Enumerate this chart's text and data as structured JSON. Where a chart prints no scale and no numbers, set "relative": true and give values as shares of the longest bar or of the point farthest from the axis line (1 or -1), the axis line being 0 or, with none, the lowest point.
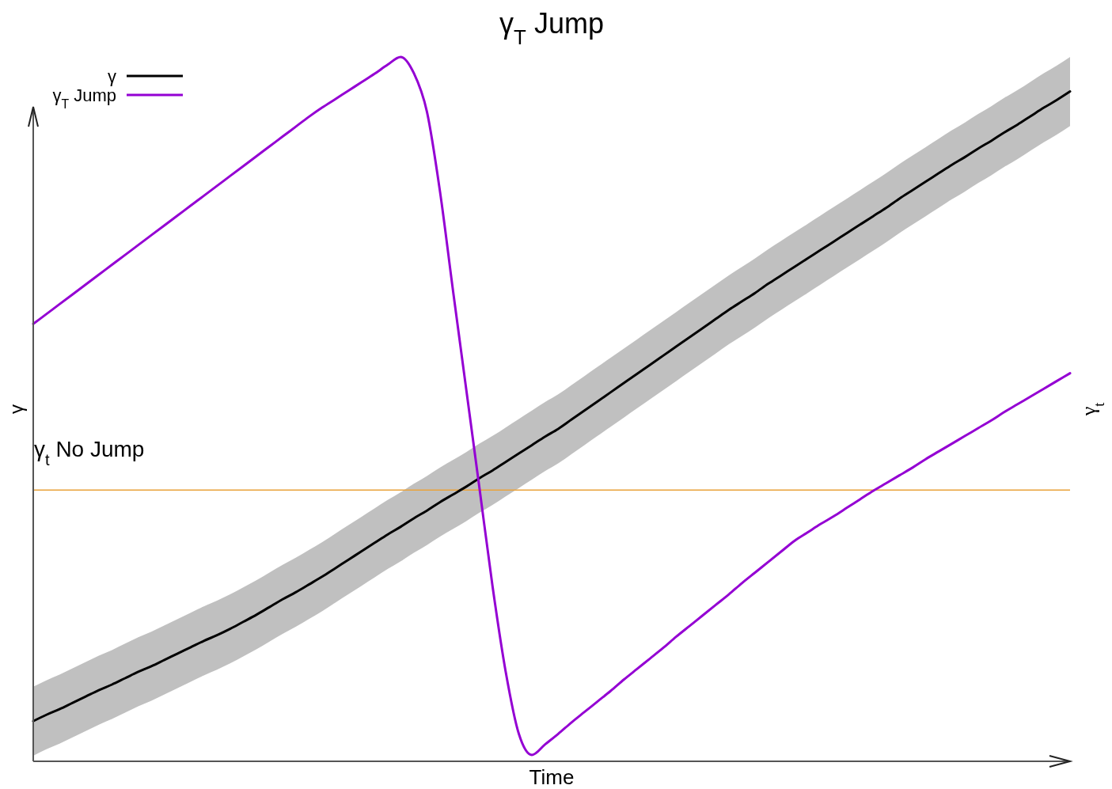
{
  "chart_data": {
    "type": "line",
    "title": "γ$_{T}$ Jump",
    "xlabel": "Time",
    "ylabel": "γ",
    "y2label": "γ$_{t}$",
    "relative": true,
    "legend": "top left",
    "categories": [
      null,
      null,
      null,
      null,
      null,
      null,
      null,
      null,
      null,
      null,
      null,
      null,
      null,
      null,
      null,
      null,
      null,
      null,
      null,
      null,
      null,
      null,
      null,
      null,
      null,
      null,
      null,
      null,
      null,
      null,
      null,
      null,
      null,
      null,
      null,
      null,
      null,
      null,
      null,
      null,
      null,
      null,
      null,
      null,
      null,
      null,
      null,
      null,
      null,
      null,
      null,
      null,
      null,
      null,
      null,
      null,
      null,
      null,
      null,
      null,
      null,
      null,
      null,
      null,
      null,
      null,
      null,
      null,
      null,
      null,
      null,
      null,
      null,
      null,
      null,
      null,
      null,
      null,
      null,
      null
    ],
    "series": [
      {
        "name": "γ",
        "color": "#000000",
        "values": [
          0.057,
          0.066,
          0.074,
          0.083,
          0.092,
          0.101,
          0.109,
          0.118,
          0.127,
          0.135,
          0.144,
          0.153,
          0.162,
          0.171,
          0.179,
          0.188,
          0.198,
          0.208,
          0.219,
          0.23,
          0.24,
          0.251,
          0.262,
          0.274,
          0.286,
          0.298,
          0.31,
          0.322,
          0.333,
          0.345,
          0.356,
          0.368,
          0.379,
          0.39,
          0.402,
          0.413,
          0.425,
          0.437,
          0.449,
          0.461,
          0.472,
          0.485,
          0.498,
          0.511,
          0.524,
          0.537,
          0.55,
          0.563,
          0.576,
          0.589,
          0.602,
          0.615,
          0.628,
          0.641,
          0.653,
          0.665,
          0.678,
          0.69,
          0.702,
          0.714,
          0.726,
          0.738,
          0.75,
          0.762,
          0.774,
          0.786,
          0.799,
          0.811,
          0.823,
          0.835,
          0.847,
          0.858,
          0.87,
          0.881,
          0.893,
          0.904,
          0.916,
          0.928,
          0.939,
          0.951
        ],
        "lower": [
          0.008,
          0.017,
          0.025,
          0.034,
          0.043,
          0.052,
          0.06,
          0.069,
          0.078,
          0.086,
          0.095,
          0.104,
          0.113,
          0.122,
          0.13,
          0.139,
          0.149,
          0.159,
          0.17,
          0.181,
          0.191,
          0.202,
          0.213,
          0.225,
          0.237,
          0.249,
          0.261,
          0.273,
          0.284,
          0.296,
          0.307,
          0.319,
          0.33,
          0.341,
          0.353,
          0.364,
          0.376,
          0.388,
          0.4,
          0.412,
          0.423,
          0.436,
          0.449,
          0.462,
          0.475,
          0.488,
          0.501,
          0.514,
          0.527,
          0.54,
          0.553,
          0.566,
          0.579,
          0.592,
          0.604,
          0.616,
          0.629,
          0.641,
          0.653,
          0.665,
          0.677,
          0.689,
          0.701,
          0.713,
          0.725,
          0.737,
          0.75,
          0.762,
          0.774,
          0.786,
          0.798,
          0.809,
          0.821,
          0.832,
          0.844,
          0.855,
          0.867,
          0.879,
          0.89,
          0.902
        ],
        "upper": [
          0.106,
          0.115,
          0.123,
          0.132,
          0.141,
          0.15,
          0.158,
          0.167,
          0.176,
          0.184,
          0.193,
          0.202,
          0.211,
          0.22,
          0.228,
          0.237,
          0.247,
          0.257,
          0.268,
          0.279,
          0.289,
          0.3,
          0.311,
          0.323,
          0.335,
          0.347,
          0.359,
          0.371,
          0.382,
          0.394,
          0.405,
          0.417,
          0.428,
          0.439,
          0.451,
          0.462,
          0.474,
          0.486,
          0.498,
          0.51,
          0.521,
          0.534,
          0.547,
          0.56,
          0.573,
          0.586,
          0.599,
          0.612,
          0.625,
          0.638,
          0.651,
          0.664,
          0.677,
          0.69,
          0.702,
          0.714,
          0.727,
          0.739,
          0.751,
          0.763,
          0.775,
          0.787,
          0.799,
          0.811,
          0.823,
          0.835,
          0.848,
          0.86,
          0.872,
          0.884,
          0.896,
          0.907,
          0.919,
          0.93,
          0.942,
          0.953,
          0.965,
          0.977,
          0.988,
          1.0
        ]
      },
      {
        "name": "γ$_{T}$ Jump",
        "color": "#9400d3",
        "values": [
          0.621,
          0.635,
          0.649,
          0.663,
          0.677,
          0.691,
          0.705,
          0.719,
          0.733,
          0.747,
          0.761,
          0.775,
          0.789,
          0.803,
          0.817,
          0.831,
          0.845,
          0.859,
          0.873,
          0.887,
          0.901,
          0.915,
          0.928,
          0.94,
          0.952,
          0.964,
          0.976,
          0.989,
          1.0,
          0.977,
          0.922,
          0.808,
          0.666,
          0.527,
          0.388,
          0.248,
          0.127,
          0.039,
          0.009,
          0.024,
          0.039,
          0.055,
          0.07,
          0.085,
          0.1,
          0.116,
          0.131,
          0.146,
          0.161,
          0.177,
          0.192,
          0.207,
          0.222,
          0.237,
          0.253,
          0.268,
          0.283,
          0.298,
          0.313,
          0.325,
          0.337,
          0.348,
          0.36,
          0.372,
          0.384,
          0.395,
          0.406,
          0.417,
          0.429,
          0.44,
          0.451,
          0.462,
          0.473,
          0.484,
          0.496,
          0.507,
          0.518,
          0.529,
          0.54,
          0.551
        ]
      }
    ],
    "ref_lines": [
      {
        "axis": "y",
        "value": 0.385,
        "label": "γ$_{t}$ No Jump",
        "color": "#e9a23b"
      }
    ]
  }
}
